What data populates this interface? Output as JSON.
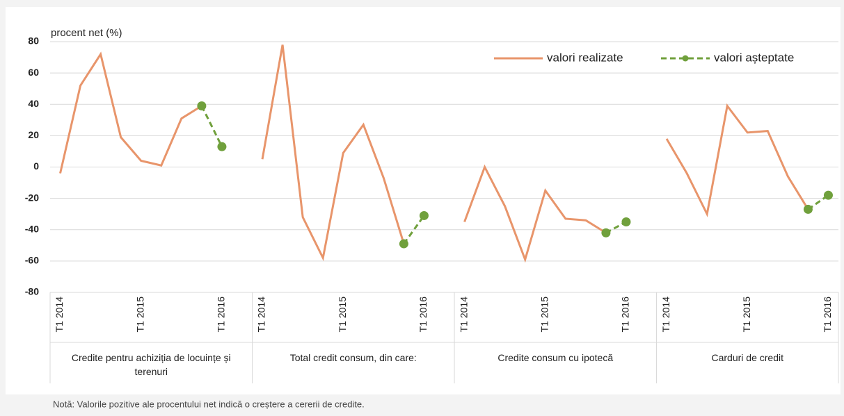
{
  "chart_data": {
    "type": "line",
    "ylabel": "procent net (%)",
    "note": "Notă: Valorile pozitive ale procentului net indică o creștere a cererii de credite.",
    "groups": [
      "Credite pentru achiziția de locuințe și terenuri",
      "Total credit consum, din care:",
      "Credite consum cu ipotecă",
      "Carduri de credit"
    ],
    "categories": [
      "T1 2014",
      null,
      null,
      null,
      "T1 2015",
      null,
      null,
      null,
      "T1 2016",
      null,
      "T1 2014",
      null,
      null,
      null,
      "T1 2015",
      null,
      null,
      null,
      "T1 2016",
      null,
      "T1 2014",
      null,
      null,
      null,
      "T1 2015",
      null,
      null,
      null,
      "T1 2016",
      null,
      "T1 2014",
      null,
      null,
      null,
      "T1 2015",
      null,
      null,
      null,
      "T1 2016"
    ],
    "series": [
      {
        "name": "valori realizate",
        "color": "#e8956b",
        "dashed": false,
        "markers": false,
        "values": [
          -4,
          52,
          72,
          19,
          4,
          1,
          31,
          39,
          null,
          null,
          5,
          78,
          -32,
          -58,
          9,
          27,
          -7,
          -49,
          null,
          null,
          -35,
          0,
          -25,
          -59,
          -15,
          -33,
          -34,
          -42,
          null,
          null,
          18,
          -4,
          -30,
          39,
          22,
          23,
          -6,
          -27,
          null
        ]
      },
      {
        "name": "valori așteptate",
        "color": "#70a03c",
        "dashed": true,
        "markers": true,
        "values": [
          null,
          null,
          null,
          null,
          null,
          null,
          null,
          39,
          13,
          null,
          null,
          null,
          null,
          null,
          null,
          null,
          null,
          -49,
          -31,
          null,
          null,
          null,
          null,
          null,
          null,
          null,
          null,
          -42,
          -35,
          null,
          null,
          null,
          null,
          null,
          null,
          null,
          null,
          -27,
          -18
        ]
      }
    ],
    "ylim": [
      -80,
      80
    ],
    "yticks": [
      -80,
      -60,
      -40,
      -20,
      0,
      20,
      40,
      60,
      80
    ],
    "grid": true,
    "legend": "top-right"
  }
}
